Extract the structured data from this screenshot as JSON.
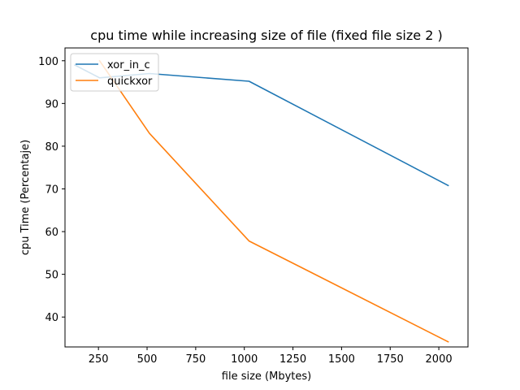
{
  "chart_data": {
    "type": "line",
    "title": "cpu time while increasing size of file (fixed file size 2 )",
    "xlabel": "file size (Mbytes)",
    "ylabel": "cpu Time (Percentaje)",
    "xlim": [
      78,
      2150
    ],
    "ylim": [
      33,
      103
    ],
    "xticks": [
      250,
      500,
      750,
      1000,
      1250,
      1500,
      1750,
      2000
    ],
    "yticks": [
      40,
      50,
      60,
      70,
      80,
      90,
      100
    ],
    "grid": false,
    "legend_position": "upper-left",
    "series": [
      {
        "name": "xor_in_c",
        "color": "#1f77b4",
        "points": [
          [
            128,
            99.0
          ],
          [
            256,
            96.0
          ],
          [
            512,
            97.0
          ],
          [
            1024,
            95.2
          ],
          [
            2048,
            70.8
          ]
        ]
      },
      {
        "name": "quickxor",
        "color": "#ff7f0e",
        "points": [
          [
            256,
            100.0
          ],
          [
            512,
            83.0
          ],
          [
            1024,
            57.8
          ],
          [
            2048,
            34.2
          ]
        ]
      }
    ]
  }
}
